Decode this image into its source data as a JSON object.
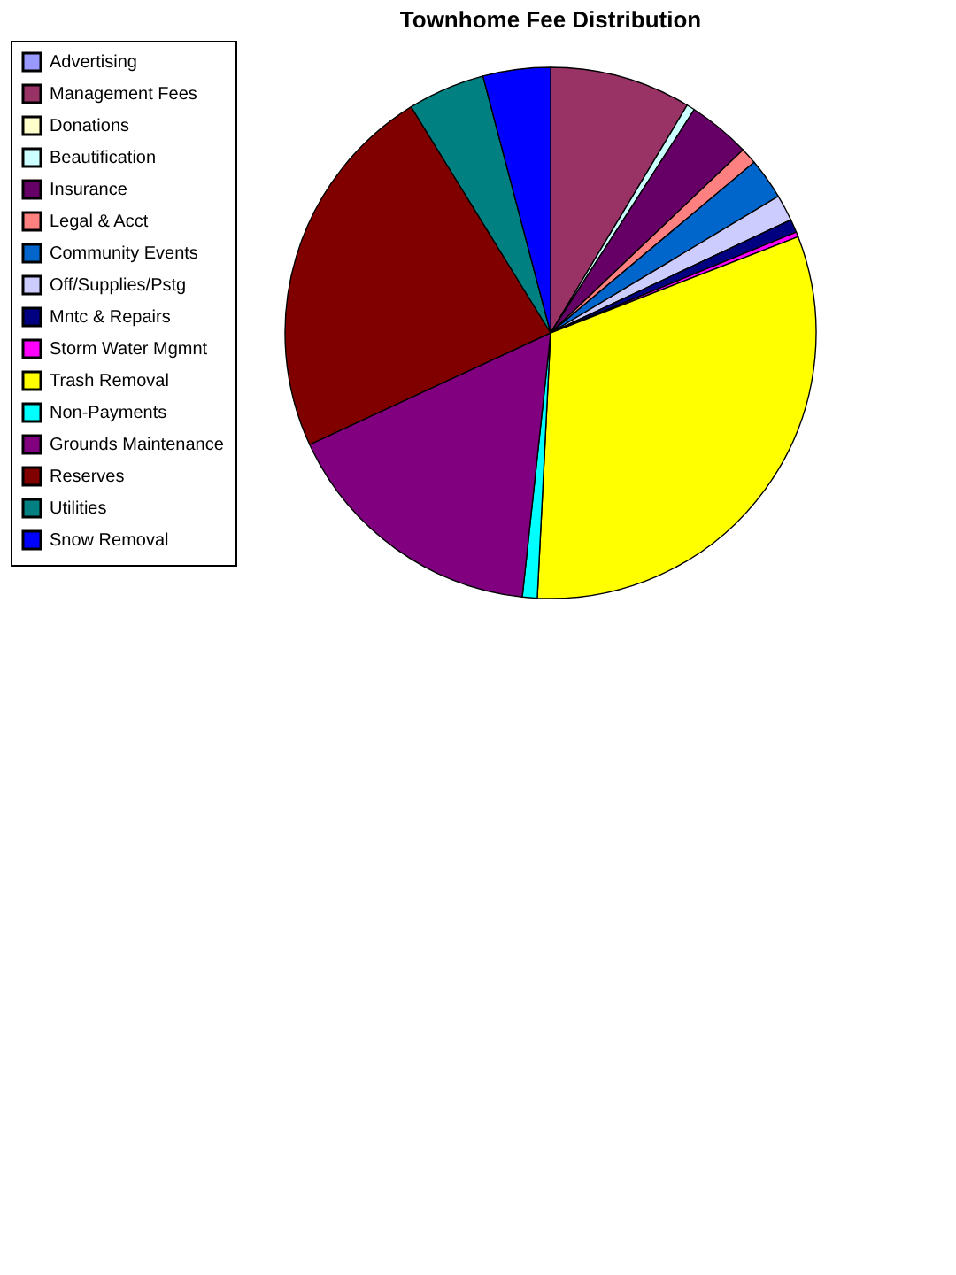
{
  "chart_data": {
    "type": "pie",
    "title": "Townhome Fee Distribution",
    "categories": [
      "Advertising",
      "Management Fees",
      "Donations",
      "Beautification",
      "Insurance",
      "Legal & Acct",
      "Community Events",
      "Off/Supplies/Pstg",
      "Mntc & Repairs",
      "Storm Water Mgmnt",
      "Trash Removal",
      "Non-Payments",
      "Grounds Maintenance",
      "Reserves",
      "Utilities",
      "Snow  Removal"
    ],
    "values": [
      0,
      8.6,
      0,
      0.5,
      3.8,
      1.0,
      2.5,
      1.6,
      0.8,
      0.3,
      31.7,
      0.9,
      16.4,
      23.1,
      4.7,
      4.1
    ],
    "colors": [
      "#9999ff",
      "#993366",
      "#ffffcc",
      "#ccffff",
      "#660066",
      "#ff8080",
      "#0066cc",
      "#ccccff",
      "#000080",
      "#ff00ff",
      "#ffff00",
      "#00ffff",
      "#800080",
      "#800000",
      "#008080",
      "#0000ff"
    ],
    "legend": "left"
  }
}
